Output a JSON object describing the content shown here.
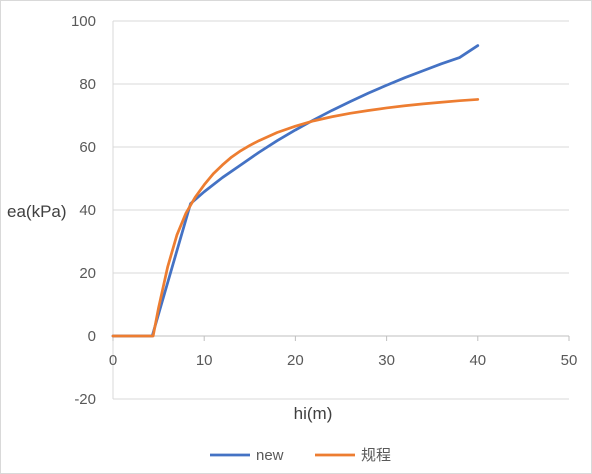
{
  "chart_data": {
    "type": "line",
    "title": "",
    "xlabel": "hi(m)",
    "ylabel": "ea(kPa)",
    "xlim": [
      0,
      50
    ],
    "ylim": [
      -20,
      100
    ],
    "x_ticks": [
      0,
      10,
      20,
      30,
      40,
      50
    ],
    "y_ticks": [
      -20,
      0,
      20,
      40,
      60,
      80,
      100
    ],
    "grid": "horizontal",
    "legend_position": "bottom",
    "series": [
      {
        "name": "new",
        "color": "#4472c4",
        "points": [
          [
            0,
            0
          ],
          [
            4.3,
            0
          ],
          [
            8.5,
            42
          ],
          [
            10,
            45.8
          ],
          [
            12,
            50.3
          ],
          [
            14,
            54.3
          ],
          [
            16,
            58.3
          ],
          [
            18,
            62.0
          ],
          [
            20,
            65.4
          ],
          [
            22,
            68.6
          ],
          [
            24,
            71.6
          ],
          [
            26,
            74.4
          ],
          [
            28,
            77.1
          ],
          [
            30,
            79.6
          ],
          [
            32,
            82.0
          ],
          [
            34,
            84.2
          ],
          [
            36,
            86.4
          ],
          [
            38,
            88.4
          ],
          [
            40,
            92.2
          ]
        ]
      },
      {
        "name": "规程",
        "color": "#ed7d31",
        "points": [
          [
            0,
            0
          ],
          [
            4.4,
            0
          ],
          [
            5,
            9
          ],
          [
            6,
            22
          ],
          [
            7,
            32
          ],
          [
            8,
            39
          ],
          [
            9,
            44
          ],
          [
            10,
            48
          ],
          [
            11,
            51.5
          ],
          [
            12,
            54.3
          ],
          [
            13,
            56.8
          ],
          [
            14,
            58.8
          ],
          [
            15,
            60.5
          ],
          [
            16,
            62.0
          ],
          [
            18,
            64.6
          ],
          [
            20,
            66.6
          ],
          [
            22,
            68.3
          ],
          [
            24,
            69.6
          ],
          [
            26,
            70.7
          ],
          [
            28,
            71.6
          ],
          [
            30,
            72.4
          ],
          [
            32,
            73.1
          ],
          [
            34,
            73.7
          ],
          [
            36,
            74.2
          ],
          [
            38,
            74.7
          ],
          [
            40,
            75.1
          ]
        ]
      }
    ]
  }
}
